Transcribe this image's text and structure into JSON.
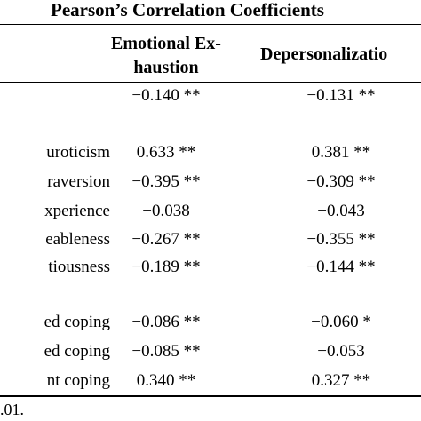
{
  "table": {
    "group_header": "Pearson’s Correlation Coefficients",
    "col1_header_line1": "Emotional Ex-",
    "col1_header_line2": "haustion",
    "col2_header": "Depersonalizatio",
    "rows": [
      {
        "label": "",
        "col1": "−0.140 **",
        "col2": "−0.131 **"
      },
      {
        "label": "uroticism",
        "col1": "0.633 **",
        "col2": "0.381 **"
      },
      {
        "label": "raversion",
        "col1": "−0.395 **",
        "col2": "−0.309 **"
      },
      {
        "label": "xperience",
        "col1": "−0.038",
        "col2": "−0.043"
      },
      {
        "label": "eableness",
        "col1": "−0.267 **",
        "col2": "−0.355 **"
      },
      {
        "label": "tiousness",
        "col1": "−0.189 **",
        "col2": "−0.144 **"
      },
      {
        "label": "ed coping",
        "col1": "−0.086 **",
        "col2": "−0.060 *"
      },
      {
        "label": "ed coping",
        "col1": "−0.085 **",
        "col2": "−0.053"
      },
      {
        "label": "nt coping",
        "col1": "0.340 **",
        "col2": "0.327 **"
      }
    ],
    "footnote": ".01."
  }
}
